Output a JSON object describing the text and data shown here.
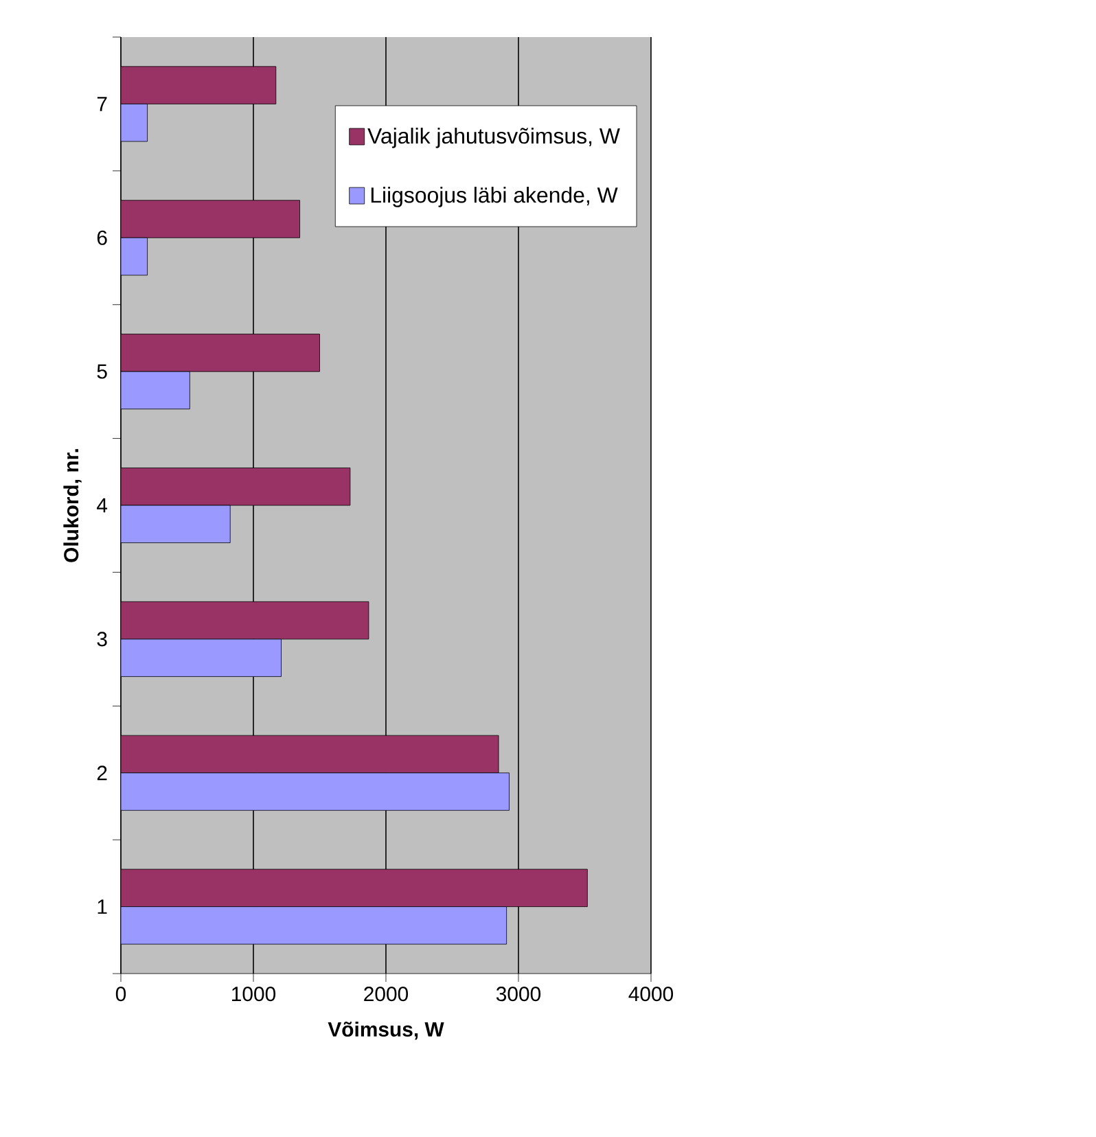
{
  "chart_data": {
    "type": "bar",
    "orientation": "horizontal",
    "categories": [
      "7",
      "6",
      "5",
      "4",
      "3",
      "2",
      "1"
    ],
    "xlabel": "Võimsus, W",
    "ylabel": "Olukord, nr.",
    "xlim": [
      0,
      4000
    ],
    "xticks": [
      0,
      1000,
      2000,
      3000,
      4000
    ],
    "grid": "x",
    "legend": "top right",
    "series": [
      {
        "name": "Vajalik jahutusvõimsus, W",
        "color": "#993366",
        "values": [
          1170,
          1350,
          1500,
          1730,
          1870,
          2850,
          3520
        ]
      },
      {
        "name": "Liigsoojus läbi akende, W",
        "color": "#9999ff",
        "values": [
          200,
          200,
          520,
          825,
          1210,
          2930,
          2910
        ]
      }
    ]
  }
}
